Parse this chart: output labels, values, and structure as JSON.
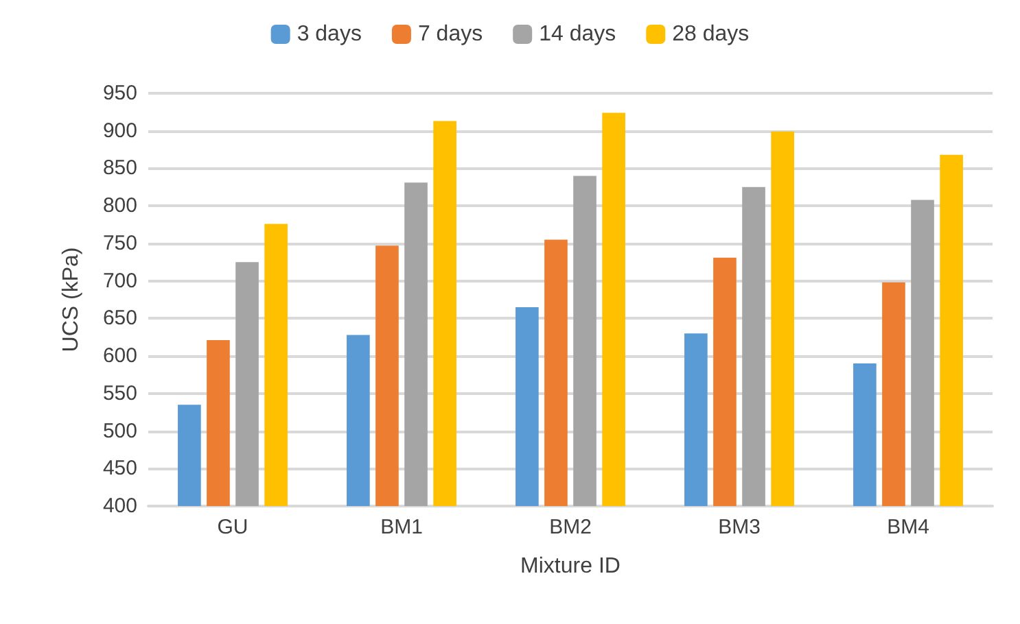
{
  "chart_data": {
    "type": "bar",
    "xlabel": "Mixture ID",
    "ylabel": "UCS (kPa)",
    "categories": [
      "GU",
      "BM1",
      "BM2",
      "BM3",
      "BM4"
    ],
    "series": [
      {
        "name": "3 days",
        "color": "#5b9bd5",
        "values": [
          535,
          628,
          665,
          630,
          590
        ]
      },
      {
        "name": "7 days",
        "color": "#ed7d31",
        "values": [
          621,
          747,
          755,
          731,
          698
        ]
      },
      {
        "name": "14 days",
        "color": "#a5a5a5",
        "values": [
          725,
          831,
          840,
          825,
          808
        ]
      },
      {
        "name": "28 days",
        "color": "#ffc000",
        "values": [
          776,
          913,
          924,
          899,
          868
        ]
      }
    ],
    "ylim": [
      400,
      950
    ],
    "yticks": [
      400,
      450,
      500,
      550,
      600,
      650,
      700,
      750,
      800,
      850,
      900,
      950
    ],
    "grid": "y",
    "legend": "top"
  }
}
